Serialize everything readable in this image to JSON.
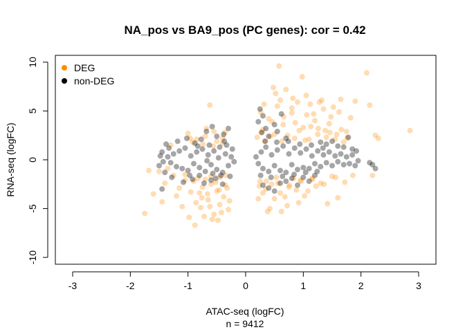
{
  "chart_data": {
    "type": "scatter",
    "title": "NA_pos vs BA9_pos (PC genes): cor = 0.42",
    "xlabel": "ATAC-seq (logFC)",
    "ylabel": "RNA-seq (logFC)",
    "subtitle": "n = 9412",
    "xlim": [
      -3.3,
      3.3
    ],
    "ylim": [
      -10.7,
      10.7
    ],
    "xticks": [
      -3,
      -2,
      -1,
      0,
      1,
      2,
      3
    ],
    "yticks": [
      -10,
      -5,
      0,
      5,
      10
    ],
    "grid": false,
    "legend_position": "top-left",
    "series": [
      {
        "name": "DEG",
        "color": "#ff8c00",
        "points": [
          [
            -0.9,
            -2.2
          ],
          [
            -0.85,
            2.1
          ],
          [
            -0.8,
            -3.4
          ],
          [
            -0.75,
            -2.8
          ],
          [
            -0.7,
            2.4
          ],
          [
            -0.65,
            -4.1
          ],
          [
            -0.6,
            -2.5
          ],
          [
            -0.55,
            2.9
          ],
          [
            -0.5,
            -3.2
          ],
          [
            -0.45,
            -4.6
          ],
          [
            -0.4,
            2.2
          ],
          [
            -0.35,
            -2.6
          ],
          [
            -0.3,
            -5.1
          ],
          [
            -0.55,
            -5.6
          ],
          [
            -0.72,
            -5.8
          ],
          [
            -0.48,
            -6.2
          ],
          [
            -0.62,
            -4.8
          ],
          [
            -0.38,
            -3.8
          ],
          [
            -0.95,
            -3.3
          ],
          [
            -1.05,
            -2.1
          ],
          [
            -1.15,
            -2.9
          ],
          [
            -1.25,
            -1.6
          ],
          [
            -1.3,
            1.5
          ],
          [
            -1.4,
            -2.4
          ],
          [
            -1.5,
            -1.2
          ],
          [
            -1.6,
            -3.5
          ],
          [
            -1.75,
            -5.5
          ],
          [
            -1.68,
            -1.1
          ],
          [
            -1.45,
            -4.3
          ],
          [
            -1.1,
            -4.8
          ],
          [
            -0.98,
            -5.9
          ],
          [
            -0.88,
            -6.7
          ],
          [
            -0.78,
            -4.9
          ],
          [
            -0.66,
            -3.5
          ],
          [
            -0.58,
            -6.1
          ],
          [
            -0.42,
            -5.4
          ],
          [
            -0.32,
            -2.9
          ],
          [
            -0.28,
            -4.2
          ],
          [
            -0.92,
            1.8
          ],
          [
            -1.0,
            2.7
          ],
          [
            -0.68,
            3.2
          ],
          [
            -0.5,
            1.9
          ],
          [
            -0.62,
            5.6
          ],
          [
            -0.36,
            2.8
          ],
          [
            -0.44,
            -1.8
          ],
          [
            -0.83,
            -1.9
          ],
          [
            -1.2,
            -3.7
          ],
          [
            -1.35,
            -0.9
          ],
          [
            -0.7,
            -2.0
          ],
          [
            -0.6,
            -1.7
          ],
          [
            -0.52,
            -2.3
          ],
          [
            -0.76,
            -3.9
          ],
          [
            -0.86,
            -4.4
          ],
          [
            -0.46,
            -3.1
          ],
          [
            -0.34,
            -1.6
          ],
          [
            -1.05,
            -1.5
          ],
          [
            -0.96,
            2.2
          ],
          [
            -0.74,
            1.6
          ],
          [
            -0.56,
            1.4
          ],
          [
            -0.4,
            1.7
          ],
          [
            0.2,
            2.3
          ],
          [
            0.25,
            -2.2
          ],
          [
            0.3,
            3.1
          ],
          [
            0.35,
            -3.0
          ],
          [
            0.4,
            4.2
          ],
          [
            0.45,
            -2.5
          ],
          [
            0.5,
            2.6
          ],
          [
            0.55,
            5.5
          ],
          [
            0.6,
            -3.4
          ],
          [
            0.65,
            3.6
          ],
          [
            0.7,
            7.2
          ],
          [
            0.75,
            -2.8
          ],
          [
            0.8,
            4.8
          ],
          [
            0.85,
            2.2
          ],
          [
            0.9,
            5.9
          ],
          [
            0.95,
            -2.1
          ],
          [
            1.0,
            3.3
          ],
          [
            1.05,
            6.6
          ],
          [
            1.1,
            2.1
          ],
          [
            1.15,
            -1.9
          ],
          [
            1.2,
            4.0
          ],
          [
            1.25,
            2.6
          ],
          [
            1.3,
            -2.4
          ],
          [
            1.35,
            5.2
          ],
          [
            1.4,
            2.3
          ],
          [
            1.45,
            3.7
          ],
          [
            1.5,
            -1.7
          ],
          [
            1.55,
            2.1
          ],
          [
            1.6,
            -3.9
          ],
          [
            1.65,
            6.2
          ],
          [
            1.7,
            1.8
          ],
          [
            1.75,
            2.9
          ],
          [
            1.82,
            4.3
          ],
          [
            1.9,
            6.0
          ],
          [
            2.1,
            8.9
          ],
          [
            2.15,
            5.6
          ],
          [
            2.2,
            -1.6
          ],
          [
            2.25,
            2.5
          ],
          [
            2.3,
            2.2
          ],
          [
            2.85,
            3.0
          ],
          [
            0.58,
            9.6
          ],
          [
            0.98,
            8.5
          ],
          [
            0.22,
            -4.0
          ],
          [
            0.32,
            5.7
          ],
          [
            0.42,
            -5.0
          ],
          [
            0.52,
            6.8
          ],
          [
            0.62,
            -5.3
          ],
          [
            0.72,
            -4.7
          ],
          [
            0.82,
            6.3
          ],
          [
            0.92,
            -4.4
          ],
          [
            1.02,
            -3.7
          ],
          [
            1.12,
            5.7
          ],
          [
            1.22,
            -2.7
          ],
          [
            1.32,
            6.1
          ],
          [
            1.42,
            -4.5
          ],
          [
            1.52,
            5.4
          ],
          [
            1.62,
            4.9
          ],
          [
            1.72,
            -2.3
          ],
          [
            0.38,
            -5.3
          ],
          [
            0.48,
            7.4
          ],
          [
            0.27,
            2.8
          ],
          [
            0.33,
            1.9
          ],
          [
            0.43,
            2.4
          ],
          [
            0.53,
            -1.8
          ],
          [
            0.63,
            1.9
          ],
          [
            0.73,
            2.5
          ],
          [
            0.83,
            -1.9
          ],
          [
            0.93,
            3.0
          ],
          [
            1.03,
            2.0
          ],
          [
            1.13,
            3.4
          ],
          [
            0.24,
            -2.7
          ],
          [
            0.36,
            -2.2
          ],
          [
            0.46,
            3.9
          ],
          [
            0.56,
            -2.4
          ],
          [
            0.66,
            4.4
          ],
          [
            0.76,
            -2.6
          ],
          [
            0.86,
            3.8
          ],
          [
            0.96,
            -2.2
          ],
          [
            1.06,
            4.6
          ],
          [
            1.16,
            -2.0
          ],
          [
            1.26,
            3.2
          ],
          [
            1.36,
            -2.5
          ],
          [
            1.46,
            2.8
          ],
          [
            1.56,
            -1.8
          ],
          [
            1.66,
            3.1
          ],
          [
            1.76,
            2.2
          ],
          [
            1.86,
            -1.6
          ],
          [
            0.68,
            -3.8
          ],
          [
            0.88,
            -3.1
          ],
          [
            1.08,
            -3.2
          ],
          [
            0.5,
            -4.0
          ],
          [
            0.3,
            -3.4
          ],
          [
            0.26,
            4.9
          ],
          [
            0.6,
            6.1
          ],
          [
            0.8,
            5.3
          ],
          [
            1.18,
            4.7
          ],
          [
            1.28,
            5.9
          ],
          [
            1.38,
            3.0
          ],
          [
            1.48,
            4.4
          ],
          [
            1.58,
            2.6
          ]
        ]
      },
      {
        "name": "non-DEG",
        "color": "#000000",
        "points": [
          [
            -1.35,
            0.3
          ],
          [
            -1.3,
            -0.3
          ],
          [
            -1.25,
            0.6
          ],
          [
            -1.2,
            -0.7
          ],
          [
            -1.15,
            0.9
          ],
          [
            -1.1,
            -0.9
          ],
          [
            -1.05,
            1.2
          ],
          [
            -1.0,
            -1.1
          ],
          [
            -0.95,
            0.4
          ],
          [
            -0.9,
            -0.4
          ],
          [
            -0.85,
            0.8
          ],
          [
            -0.8,
            -0.8
          ],
          [
            -0.75,
            1.1
          ],
          [
            -0.7,
            -1.2
          ],
          [
            -0.65,
            0.5
          ],
          [
            -0.6,
            -0.5
          ],
          [
            -0.55,
            0.9
          ],
          [
            -0.5,
            -1.0
          ],
          [
            -0.45,
            1.3
          ],
          [
            -0.4,
            -1.3
          ],
          [
            -0.35,
            0.6
          ],
          [
            -0.3,
            -0.6
          ],
          [
            -0.25,
            0.3
          ],
          [
            -0.2,
            -0.2
          ],
          [
            -1.45,
            0.8
          ],
          [
            -1.5,
            -0.6
          ],
          [
            -1.38,
            1.6
          ],
          [
            -1.02,
            2.2
          ],
          [
            -0.68,
            2.9
          ],
          [
            -0.5,
            2.4
          ],
          [
            -0.92,
            -2.0
          ],
          [
            -0.72,
            -2.4
          ],
          [
            -0.52,
            -1.9
          ],
          [
            -1.4,
            -1.3
          ],
          [
            -1.45,
            -3.0
          ],
          [
            -0.3,
            3.2
          ],
          [
            -0.38,
            2.6
          ],
          [
            -0.58,
            3.4
          ],
          [
            -0.88,
            1.7
          ],
          [
            -1.18,
            1.9
          ],
          [
            -0.4,
            -2.5
          ],
          [
            -0.6,
            -2.1
          ],
          [
            -0.8,
            -1.6
          ],
          [
            -1.08,
            -2.3
          ],
          [
            -0.27,
            -1.7
          ],
          [
            -0.23,
            1.1
          ],
          [
            -0.33,
            1.5
          ],
          [
            -0.43,
            -1.6
          ],
          [
            -0.63,
            1.5
          ],
          [
            -0.83,
            1.4
          ],
          [
            -1.28,
            -1.8
          ],
          [
            -1.33,
            1.2
          ],
          [
            -1.43,
            -0.2
          ],
          [
            -1.48,
            0.4
          ],
          [
            -0.97,
            -1.6
          ],
          [
            -0.77,
            2.1
          ],
          [
            -0.57,
            -1.4
          ],
          [
            -0.37,
            1.9
          ],
          [
            -0.47,
            0.2
          ],
          [
            -0.67,
            -0.1
          ],
          [
            0.18,
            0.3
          ],
          [
            0.22,
            -0.4
          ],
          [
            0.27,
            0.8
          ],
          [
            0.3,
            -0.9
          ],
          [
            0.35,
            1.3
          ],
          [
            0.4,
            -1.2
          ],
          [
            0.45,
            0.5
          ],
          [
            0.5,
            -0.6
          ],
          [
            0.55,
            1.0
          ],
          [
            0.6,
            -1.1
          ],
          [
            0.65,
            1.4
          ],
          [
            0.7,
            -1.3
          ],
          [
            0.75,
            0.6
          ],
          [
            0.8,
            -0.5
          ],
          [
            0.85,
            1.2
          ],
          [
            0.9,
            -1.0
          ],
          [
            0.95,
            0.7
          ],
          [
            1.0,
            -0.8
          ],
          [
            1.05,
            1.1
          ],
          [
            1.1,
            -0.9
          ],
          [
            1.15,
            0.4
          ],
          [
            1.2,
            -0.4
          ],
          [
            1.25,
            0.9
          ],
          [
            1.3,
            -0.7
          ],
          [
            1.35,
            0.5
          ],
          [
            1.4,
            -0.3
          ],
          [
            1.45,
            0.8
          ],
          [
            1.5,
            -0.6
          ],
          [
            1.55,
            0.4
          ],
          [
            1.6,
            -0.2
          ],
          [
            1.65,
            0.6
          ],
          [
            1.7,
            -0.5
          ],
          [
            1.75,
            0.3
          ],
          [
            1.8,
            -0.4
          ],
          [
            1.85,
            0.5
          ],
          [
            1.9,
            -0.6
          ],
          [
            1.95,
            -0.1
          ],
          [
            2.2,
            -0.5
          ],
          [
            2.25,
            -0.9
          ],
          [
            2.15,
            -0.3
          ],
          [
            0.22,
            3.9
          ],
          [
            0.25,
            5.2
          ],
          [
            0.3,
            4.5
          ],
          [
            0.28,
            2.8
          ],
          [
            0.35,
            3.2
          ],
          [
            0.4,
            2.4
          ],
          [
            0.5,
            3.6
          ],
          [
            0.55,
            2.9
          ],
          [
            0.62,
            4.7
          ],
          [
            0.7,
            2.2
          ],
          [
            0.3,
            -2.6
          ],
          [
            0.4,
            -2.9
          ],
          [
            0.5,
            -3.2
          ],
          [
            0.6,
            -2.4
          ],
          [
            0.7,
            -2.2
          ],
          [
            0.8,
            -1.9
          ],
          [
            0.9,
            -2.6
          ],
          [
            1.0,
            -1.8
          ],
          [
            1.1,
            -2.2
          ],
          [
            1.2,
            -1.6
          ],
          [
            1.3,
            1.8
          ],
          [
            1.4,
            1.6
          ],
          [
            1.5,
            1.9
          ],
          [
            1.6,
            1.4
          ],
          [
            1.7,
            1.3
          ],
          [
            1.78,
            2.3
          ],
          [
            1.85,
            1.1
          ],
          [
            1.92,
            0.9
          ],
          [
            0.26,
            -1.6
          ],
          [
            0.34,
            1.9
          ],
          [
            0.44,
            -1.8
          ],
          [
            0.54,
            1.8
          ],
          [
            0.64,
            -1.7
          ],
          [
            0.74,
            1.9
          ],
          [
            0.84,
            -1.5
          ],
          [
            0.94,
            1.6
          ],
          [
            1.04,
            -1.3
          ],
          [
            1.14,
            1.5
          ],
          [
            1.24,
            -1.2
          ],
          [
            1.34,
            1.2
          ]
        ]
      }
    ]
  }
}
